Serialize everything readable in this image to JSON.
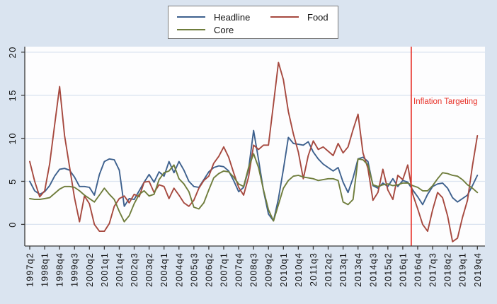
{
  "figure": {
    "background_color": "#dae4f0",
    "plot_background_color": "#fdfdfe",
    "gridline_color": "#dbe4f0",
    "axis_color": "#3a3a3a",
    "tick_label_color": "#111111"
  },
  "legend": {
    "items": [
      {
        "label": "Headline",
        "color": "#3e618e"
      },
      {
        "label": "Food",
        "color": "#a6493f"
      },
      {
        "label": "Core",
        "color": "#6f7d3c"
      }
    ]
  },
  "annotation": {
    "text": "Inflation Targeting",
    "color": "#e8332a"
  },
  "chart_data": {
    "type": "line",
    "title": "",
    "xlabel": "",
    "ylabel": "",
    "x_unit": "quarter",
    "x_start": "1997q2",
    "x_end": "2019q4",
    "n_points": 91,
    "x_tick_step_quarters": 3,
    "x_tick_labels": [
      "1997q2",
      "1998q1",
      "1998q4",
      "1999q3",
      "2000q2",
      "2001q1",
      "2001q4",
      "2002q3",
      "2003q2",
      "2004q1",
      "2004q4",
      "2005q3",
      "2006q2",
      "2007q1",
      "2007q4",
      "2008q3",
      "2009q2",
      "2010q1",
      "2010q4",
      "2011q3",
      "2012q2",
      "2013q1",
      "2013q4",
      "2014q3",
      "2015q2",
      "2016q1",
      "2016q4",
      "2017q3",
      "2018q2",
      "2019q1",
      "2019q4"
    ],
    "y_ticks": [
      0,
      5,
      10,
      15,
      20
    ],
    "ylim": [
      -2.5,
      20.6
    ],
    "grid": "horizontal",
    "legend_position": "top-center",
    "vline": {
      "at": "2016q3",
      "q_index": 76.7,
      "color": "#e8332a",
      "label": "Inflation Targeting"
    },
    "series": [
      {
        "name": "Headline",
        "color": "#3e618e",
        "values": [
          5.0,
          3.9,
          3.5,
          3.8,
          4.5,
          5.6,
          6.4,
          6.5,
          6.3,
          5.5,
          4.4,
          4.4,
          4.3,
          3.4,
          5.8,
          7.3,
          7.6,
          7.5,
          6.3,
          2.1,
          3.0,
          2.9,
          3.9,
          4.9,
          5.8,
          4.9,
          6.1,
          5.6,
          7.3,
          6.0,
          7.3,
          6.3,
          5.0,
          4.4,
          4.3,
          5.2,
          6.1,
          6.6,
          6.8,
          6.7,
          6.2,
          5.1,
          3.8,
          4.3,
          6.4,
          10.9,
          7.5,
          3.9,
          1.2,
          0.4,
          3.0,
          6.4,
          10.1,
          9.4,
          9.3,
          9.2,
          9.6,
          8.4,
          7.6,
          7.0,
          6.6,
          6.2,
          6.6,
          4.9,
          3.7,
          5.4,
          7.6,
          7.8,
          7.3,
          4.5,
          4.2,
          4.8,
          4.4,
          5.3,
          4.4,
          5.1,
          4.9,
          4.0,
          3.2,
          2.3,
          3.5,
          4.4,
          4.7,
          4.8,
          4.2,
          3.1,
          2.6,
          3.0,
          3.4,
          4.5,
          5.7
        ]
      },
      {
        "name": "Food",
        "color": "#a6493f",
        "values": [
          7.3,
          5.0,
          3.2,
          3.9,
          7.0,
          11.5,
          16.0,
          10.3,
          6.7,
          3.1,
          0.3,
          3.3,
          2.4,
          0.0,
          -0.8,
          -0.8,
          0.1,
          2.1,
          3.0,
          3.3,
          2.5,
          3.5,
          3.2,
          4.9,
          5.0,
          3.7,
          4.6,
          4.4,
          3.0,
          4.2,
          3.4,
          2.5,
          2.1,
          2.8,
          4.2,
          5.1,
          5.6,
          7.1,
          7.9,
          9.0,
          7.8,
          6.0,
          4.3,
          3.4,
          5.5,
          9.2,
          8.7,
          9.2,
          9.2,
          14.0,
          18.8,
          16.8,
          13.1,
          10.5,
          8.4,
          5.3,
          8.0,
          9.7,
          8.7,
          9.0,
          8.5,
          8.0,
          9.4,
          8.3,
          9.0,
          11.0,
          12.8,
          8.3,
          6.5,
          2.8,
          3.7,
          6.4,
          4.0,
          2.9,
          5.7,
          5.2,
          6.9,
          3.5,
          1.8,
          0.0,
          -0.8,
          1.7,
          3.7,
          3.1,
          1.0,
          -2.0,
          -1.6,
          0.8,
          2.8,
          6.8,
          10.3
        ]
      },
      {
        "name": "Core",
        "color": "#6f7d3c",
        "values": [
          3.0,
          2.9,
          2.9,
          3.0,
          3.1,
          3.6,
          4.1,
          4.4,
          4.4,
          4.3,
          3.9,
          3.4,
          3.0,
          2.6,
          3.4,
          4.2,
          3.5,
          2.9,
          1.5,
          0.3,
          1.0,
          2.4,
          3.5,
          3.9,
          3.3,
          3.5,
          5.2,
          6.0,
          6.2,
          6.9,
          5.3,
          4.7,
          3.8,
          2.0,
          1.8,
          2.5,
          4.0,
          5.4,
          5.9,
          6.2,
          6.1,
          5.5,
          4.7,
          4.4,
          6.6,
          8.2,
          6.6,
          4.0,
          1.7,
          0.4,
          2.3,
          4.2,
          5.1,
          5.6,
          5.7,
          5.5,
          5.4,
          5.3,
          5.1,
          5.2,
          5.3,
          5.3,
          5.1,
          2.6,
          2.3,
          2.9,
          7.6,
          7.5,
          6.9,
          4.6,
          4.4,
          4.6,
          4.7,
          4.5,
          4.6,
          4.8,
          4.8,
          4.5,
          4.3,
          3.9,
          3.9,
          4.5,
          5.3,
          6.0,
          5.9,
          5.7,
          5.6,
          5.2,
          4.6,
          4.2,
          3.7
        ]
      }
    ]
  }
}
